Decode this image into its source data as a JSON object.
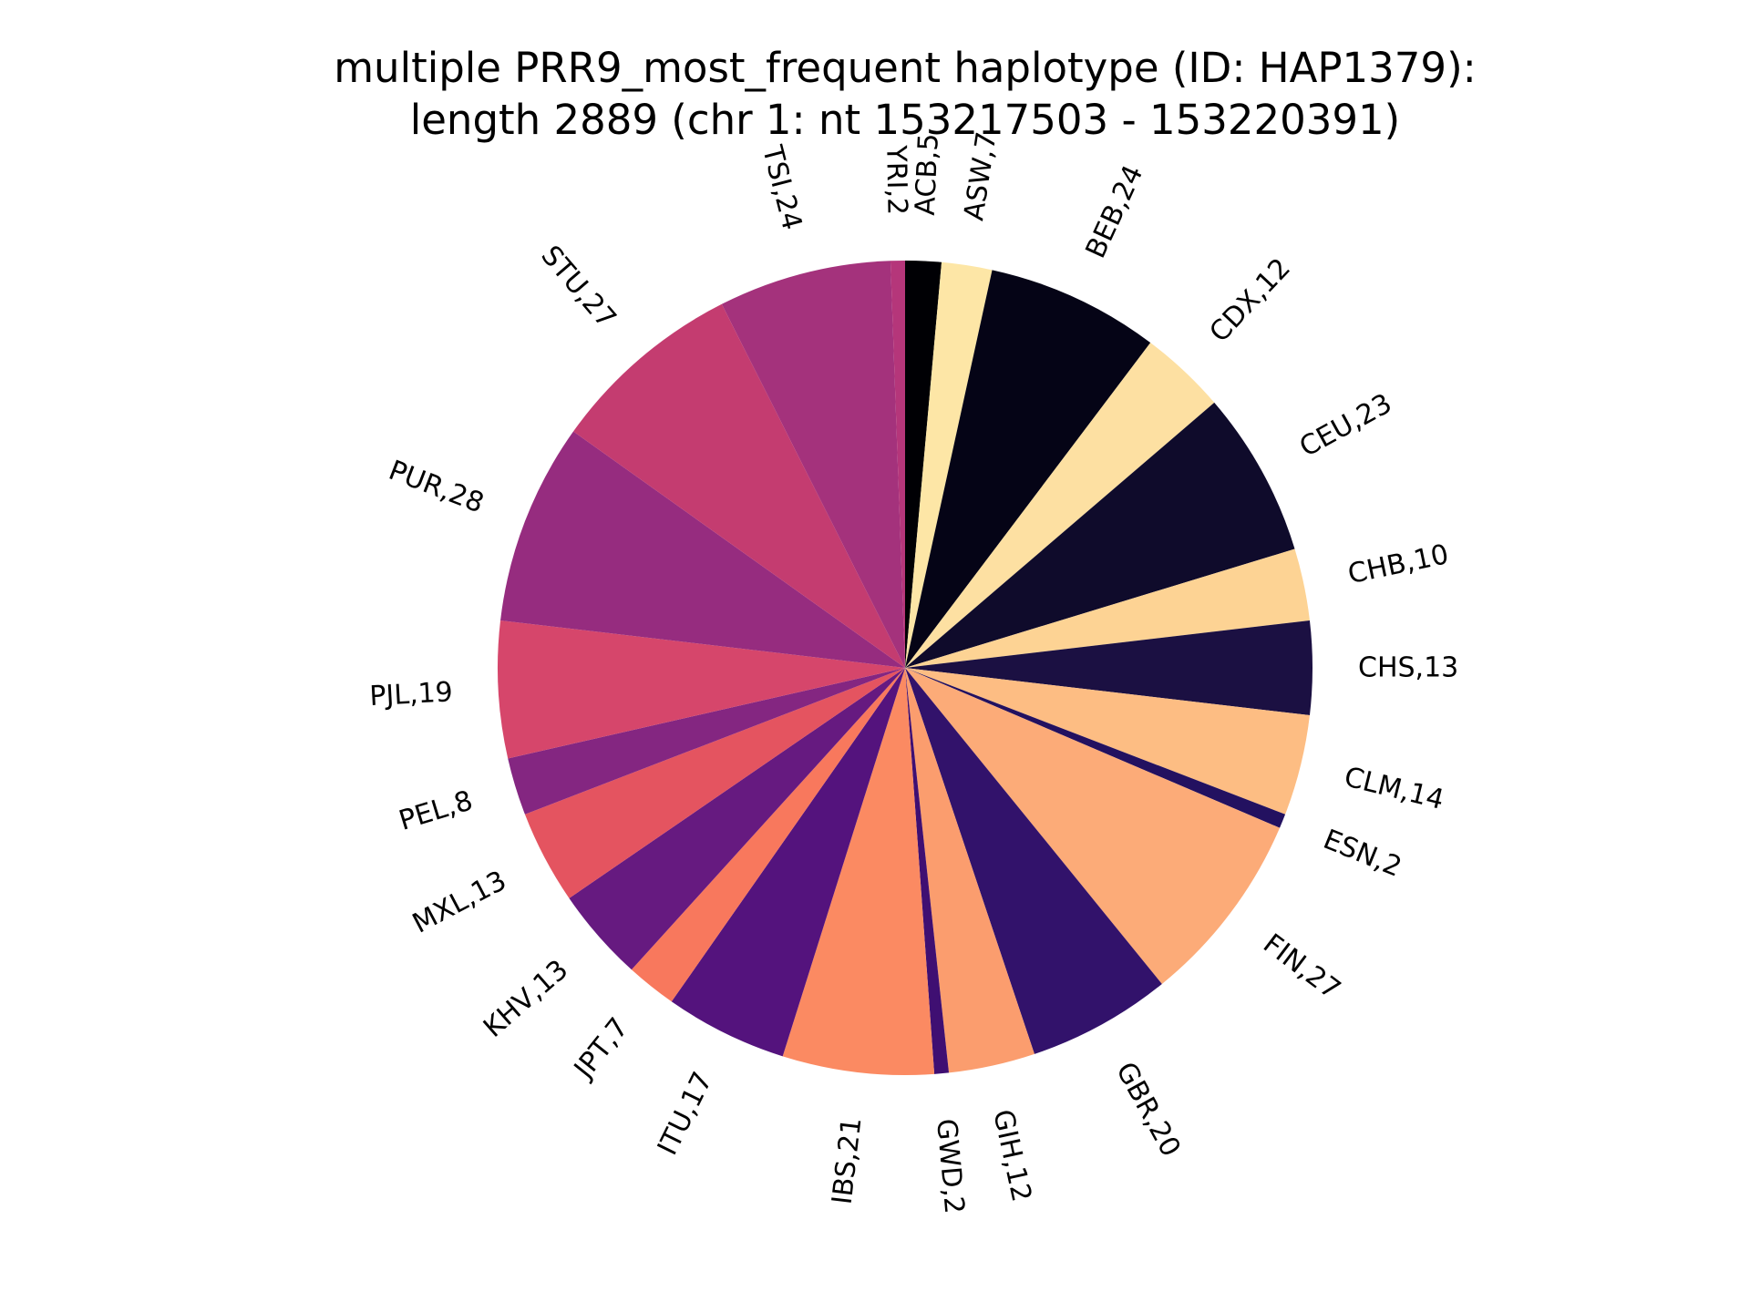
{
  "chart_data": {
    "type": "pie",
    "title_lines": [
      "multiple PRR9_most_frequent haplotype (ID: HAP1379):",
      "length 2889 (chr 1: nt 153217503 - 153220391)"
    ],
    "start_angle_deg": 90,
    "direction": "clockwise",
    "slices": [
      {
        "label": "ACB,5",
        "category": "ACB",
        "value": 5,
        "color": "#000004"
      },
      {
        "label": "ASW,7",
        "category": "ASW",
        "value": 7,
        "color": "#fde6a6"
      },
      {
        "label": "BEB,24",
        "category": "BEB",
        "value": 24,
        "color": "#050416"
      },
      {
        "label": "CDX,12",
        "category": "CDX",
        "value": 12,
        "color": "#fde0a2"
      },
      {
        "label": "CEU,23",
        "category": "CEU",
        "value": 23,
        "color": "#0f0b2b"
      },
      {
        "label": "CHB,10",
        "category": "CHB",
        "value": 10,
        "color": "#fdd394"
      },
      {
        "label": "CHS,13",
        "category": "CHS",
        "value": 13,
        "color": "#1b1042"
      },
      {
        "label": "CLM,14",
        "category": "CLM",
        "value": 14,
        "color": "#fdbd83"
      },
      {
        "label": "ESN,2",
        "category": "ESN",
        "value": 2,
        "color": "#231160"
      },
      {
        "label": "FIN,27",
        "category": "FIN",
        "value": 27,
        "color": "#fcab78"
      },
      {
        "label": "GBR,20",
        "category": "GBR",
        "value": 20,
        "color": "#32126b"
      },
      {
        "label": "GIH,12",
        "category": "GIH",
        "value": 12,
        "color": "#fb9d6e"
      },
      {
        "label": "GWD,2",
        "category": "GWD",
        "value": 2,
        "color": "#3f0f72"
      },
      {
        "label": "IBS,21",
        "category": "IBS",
        "value": 21,
        "color": "#fb8a62"
      },
      {
        "label": "ITU,17",
        "category": "ITU",
        "value": 17,
        "color": "#54137d"
      },
      {
        "label": "JPT,7",
        "category": "JPT",
        "value": 7,
        "color": "#f8785d"
      },
      {
        "label": "KHV,13",
        "category": "KHV",
        "value": 13,
        "color": "#661a80"
      },
      {
        "label": "MXL,13",
        "category": "MXL",
        "value": 13,
        "color": "#e45460"
      },
      {
        "label": "PEL,8",
        "category": "PEL",
        "value": 8,
        "color": "#842681"
      },
      {
        "label": "PJL,19",
        "category": "PJL",
        "value": 19,
        "color": "#d6466b"
      },
      {
        "label": "PUR,28",
        "category": "PUR",
        "value": 28,
        "color": "#962c7f"
      },
      {
        "label": "STU,27",
        "category": "STU",
        "value": 27,
        "color": "#c43c70"
      },
      {
        "label": "TSI,24",
        "category": "TSI",
        "value": 24,
        "color": "#a4327c"
      },
      {
        "label": "YRI,2",
        "category": "YRI",
        "value": 2,
        "color": "#b5367a"
      }
    ]
  }
}
